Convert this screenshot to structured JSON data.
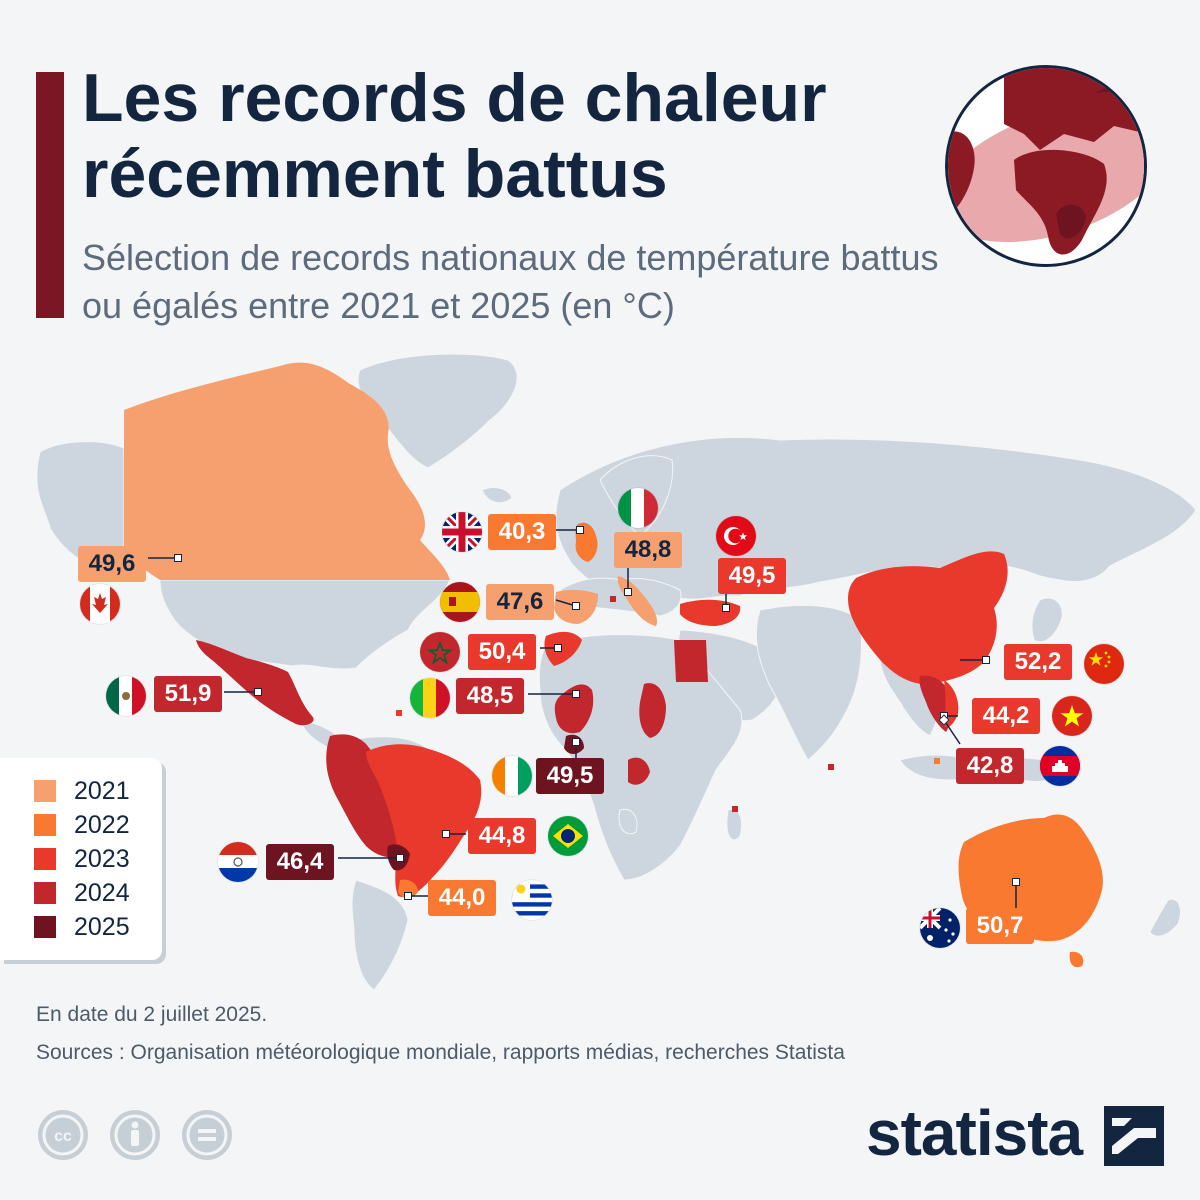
{
  "header": {
    "title": "Les records de chaleur récemment battus",
    "subtitle": "Sélection de records nationaux de température battus ou égalés entre 2021 et 2025 (en °C)"
  },
  "colors": {
    "accent": "#7b1722",
    "year_2021": "#f5a06e",
    "year_2022": "#f97930",
    "year_2023": "#e8392c",
    "year_2024": "#c1272d",
    "year_2025": "#6e1420",
    "land": "#cdd6de",
    "text": "#13253f"
  },
  "legend": {
    "items": [
      {
        "label": "2021",
        "color": "#f5a06e"
      },
      {
        "label": "2022",
        "color": "#f97930"
      },
      {
        "label": "2023",
        "color": "#e8392c"
      },
      {
        "label": "2024",
        "color": "#c1272d"
      },
      {
        "label": "2025",
        "color": "#6e1420"
      }
    ]
  },
  "records": [
    {
      "country": "Canada",
      "value": "49,6",
      "year": 2021,
      "flag": "canada-flag-icon"
    },
    {
      "country": "Royaume-Uni",
      "value": "40,3",
      "year": 2022,
      "flag": "uk-flag-icon"
    },
    {
      "country": "Italie",
      "value": "48,8",
      "year": 2021,
      "flag": "italy-flag-icon"
    },
    {
      "country": "Espagne",
      "value": "47,6",
      "year": 2021,
      "flag": "spain-flag-icon"
    },
    {
      "country": "Turquie",
      "value": "49,5",
      "year": 2023,
      "flag": "turkey-flag-icon"
    },
    {
      "country": "Maroc",
      "value": "50,4",
      "year": 2023,
      "flag": "morocco-flag-icon"
    },
    {
      "country": "Mexique",
      "value": "51,9",
      "year": 2024,
      "flag": "mexico-flag-icon"
    },
    {
      "country": "Mali",
      "value": "48,5",
      "year": 2024,
      "flag": "mali-flag-icon"
    },
    {
      "country": "Chine",
      "value": "52,2",
      "year": 2023,
      "flag": "china-flag-icon"
    },
    {
      "country": "Viêt Nam",
      "value": "44,2",
      "year": 2023,
      "flag": "vietnam-flag-icon"
    },
    {
      "country": "Côte d'Ivoire",
      "value": "49,5",
      "year": 2025,
      "flag": "ivory-coast-flag-icon"
    },
    {
      "country": "Cambodge",
      "value": "42,8",
      "year": 2024,
      "flag": "cambodia-flag-icon"
    },
    {
      "country": "Brésil",
      "value": "44,8",
      "year": 2023,
      "flag": "brazil-flag-icon"
    },
    {
      "country": "Paraguay",
      "value": "46,4",
      "year": 2025,
      "flag": "paraguay-flag-icon"
    },
    {
      "country": "Uruguay",
      "value": "44,0",
      "year": 2022,
      "flag": "uruguay-flag-icon"
    },
    {
      "country": "Australie",
      "value": "50,7",
      "year": 2022,
      "flag": "australia-flag-icon"
    }
  ],
  "footer": {
    "date_note": "En date du 2 juillet 2025.",
    "sources": "Sources : Organisation météorologique mondiale, rapports médias, recherches Statista",
    "license_icons": [
      "cc-icon",
      "attribution-icon",
      "no-derivatives-icon"
    ],
    "brand": "statista"
  }
}
